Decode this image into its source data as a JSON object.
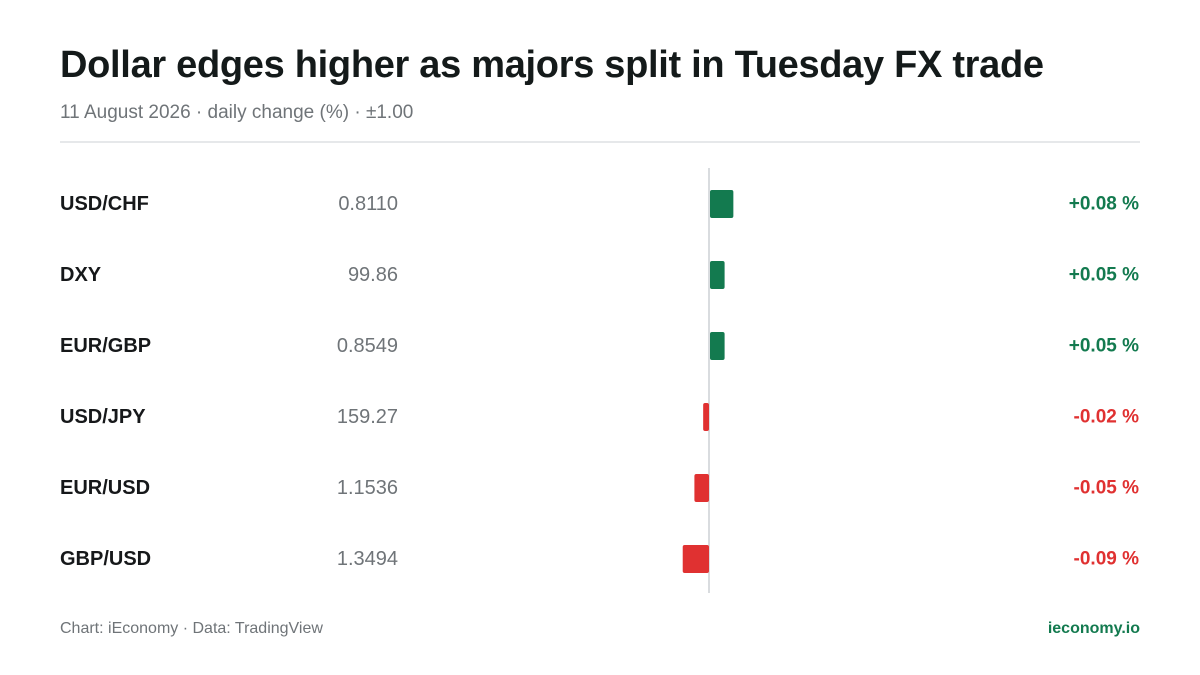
{
  "header": {
    "title": "Dollar edges higher as majors split in Tuesday FX trade",
    "subtitle": "11 August 2026 · daily change (%) · ±1.00"
  },
  "colors": {
    "positive": "#137a4f",
    "negative": "#e03131",
    "axis": "#d9dcdf",
    "label": "#16181a",
    "value": "#6f7478"
  },
  "chart_data": {
    "type": "bar",
    "orientation": "horizontal",
    "date": "11 August 2026",
    "xlim": [
      -1.0,
      1.0
    ],
    "categories": [
      "USD/CHF",
      "DXY",
      "EUR/GBP",
      "USD/JPY",
      "EUR/USD",
      "GBP/USD"
    ],
    "prices": [
      "0.8110",
      "99.86",
      "0.8549",
      "159.27",
      "1.1536",
      "1.3494"
    ],
    "values": [
      0.08,
      0.05,
      0.05,
      -0.02,
      -0.05,
      -0.09
    ],
    "value_labels": [
      "+0.08 %",
      "+0.05 %",
      "+0.05 %",
      "-0.02 %",
      "-0.05 %",
      "-0.09 %"
    ]
  },
  "footer": {
    "source": "Chart: iEconomy · Data: TradingView",
    "brand": "ieconomy.io"
  }
}
